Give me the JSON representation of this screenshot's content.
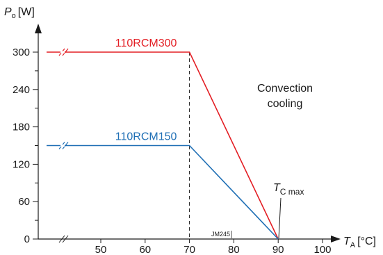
{
  "chart_data": {
    "type": "line",
    "ylabel_symbol": "P",
    "ylabel_sub": "o",
    "ylabel_unit": "[W]",
    "xlabel_symbol": "T",
    "xlabel_sub": "A",
    "xlabel_unit": "[°C]",
    "xlim": [
      40,
      100
    ],
    "ylim": [
      0,
      300
    ],
    "x_ticks": [
      50,
      60,
      70,
      80,
      90,
      100
    ],
    "x_tick_labels": [
      "50",
      "60",
      "70",
      "80",
      "90",
      "100"
    ],
    "y_ticks": [
      0,
      60,
      120,
      180,
      240,
      300
    ],
    "y_tick_labels": [
      "0",
      "60",
      "120",
      "180",
      "240",
      "300"
    ],
    "y_minor_ticks": [
      30,
      90,
      150,
      210,
      270
    ],
    "grid": false,
    "axis_break": true,
    "series": [
      {
        "name": "110RCM300",
        "color": "#e31e24",
        "x": [
          40,
          70,
          90
        ],
        "y": [
          300,
          300,
          0
        ]
      },
      {
        "name": "110RCM150",
        "color": "#1f6fb5",
        "x": [
          40,
          70,
          90
        ],
        "y": [
          150,
          150,
          0
        ]
      }
    ],
    "reference_line": {
      "x": 70,
      "style": "dashed"
    },
    "annotations": {
      "convection_line1": "Convection",
      "convection_line2": "cooling",
      "tc_symbol": "T",
      "tc_sub": "C max",
      "code": "JM245"
    }
  }
}
